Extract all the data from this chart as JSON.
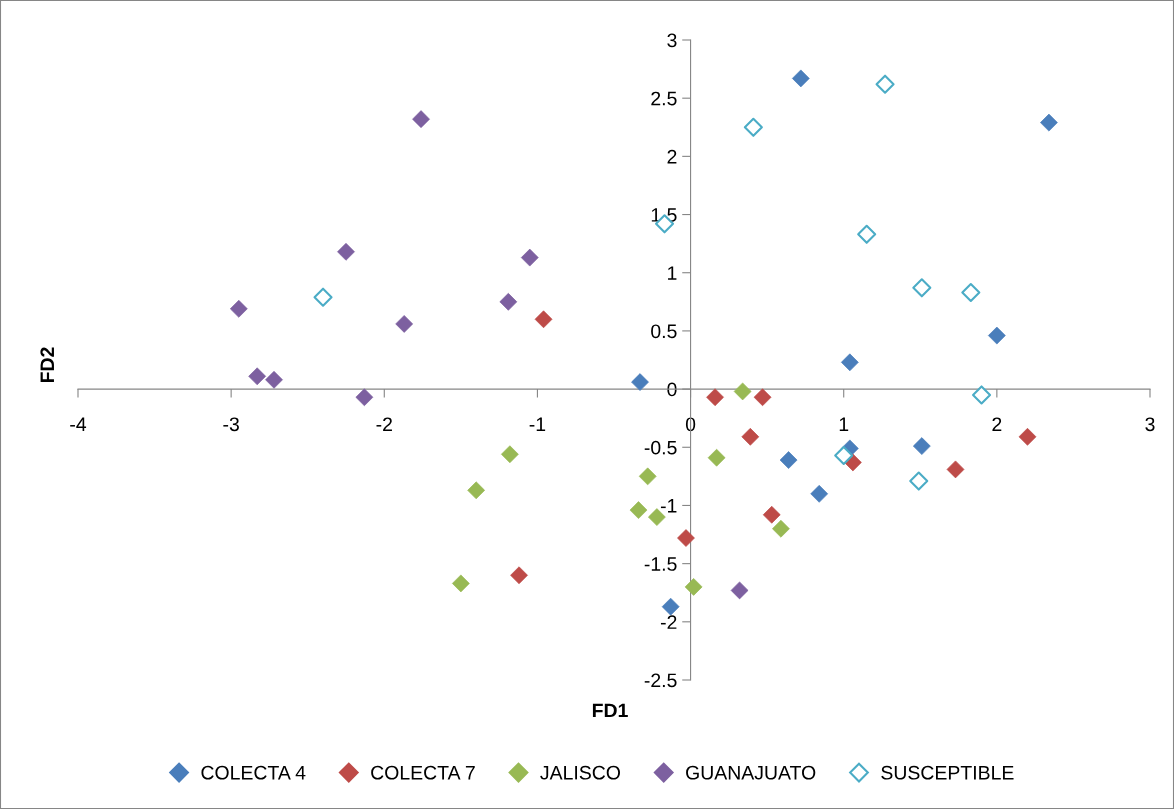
{
  "chart_data": {
    "type": "scatter",
    "xlabel": "FD1",
    "ylabel": "FD2",
    "xlim": [
      -4,
      3
    ],
    "xticks": [
      -4,
      -3,
      -2,
      -1,
      0,
      1,
      2,
      3
    ],
    "ylim": [
      -2.5,
      3
    ],
    "yticks": [
      -2.5,
      -2,
      -1.5,
      -1,
      -0.5,
      0,
      0.5,
      1,
      1.5,
      2,
      2.5,
      3
    ],
    "grid": false,
    "legend": "bottom",
    "marker": "diamond",
    "series": [
      {
        "name": "COLECTA 4",
        "color": "#4a7ebb",
        "x": [
          0.72,
          2.34,
          2.0,
          1.04,
          -0.33,
          0.64,
          1.04,
          1.51,
          0.84,
          -0.13
        ],
        "values": [
          2.67,
          2.29,
          0.46,
          0.23,
          0.06,
          -0.61,
          -0.51,
          -0.49,
          -0.9,
          -1.87
        ]
      },
      {
        "name": "COLECTA 7",
        "color": "#be4b48",
        "x": [
          0.16,
          0.47,
          0.39,
          1.06,
          1.73,
          2.2,
          0.53,
          -0.03,
          -1.12,
          -0.96
        ],
        "values": [
          -0.07,
          -0.07,
          -0.41,
          -0.63,
          -0.69,
          -0.41,
          -1.08,
          -1.28,
          -1.6,
          0.6
        ]
      },
      {
        "name": "JALISCO",
        "color": "#98b954",
        "x": [
          0.34,
          0.17,
          -0.28,
          -1.18,
          -1.4,
          -0.34,
          -0.22,
          0.59,
          0.02,
          -1.5
        ],
        "values": [
          -0.02,
          -0.59,
          -0.75,
          -0.56,
          -0.87,
          -1.04,
          -1.1,
          -1.2,
          -1.7,
          -1.67
        ]
      },
      {
        "name": "GUANAJUATO",
        "color": "#7d60a0",
        "x": [
          -2.95,
          -2.83,
          -2.72,
          -2.25,
          -1.76,
          -2.13,
          -1.87,
          -1.19,
          -1.05,
          0.32
        ],
        "values": [
          0.69,
          0.11,
          0.08,
          1.18,
          2.32,
          -0.07,
          0.56,
          0.75,
          1.13,
          -1.73
        ]
      },
      {
        "name": "SUSCEPTIBLE",
        "color": "#4bacc6",
        "x": [
          0.41,
          1.27,
          -0.17,
          1.15,
          1.51,
          1.83,
          1.9,
          1.0,
          1.49,
          -2.4
        ],
        "values": [
          2.25,
          2.62,
          1.42,
          1.33,
          0.87,
          0.83,
          -0.05,
          -0.57,
          -0.79,
          0.79
        ]
      }
    ]
  }
}
